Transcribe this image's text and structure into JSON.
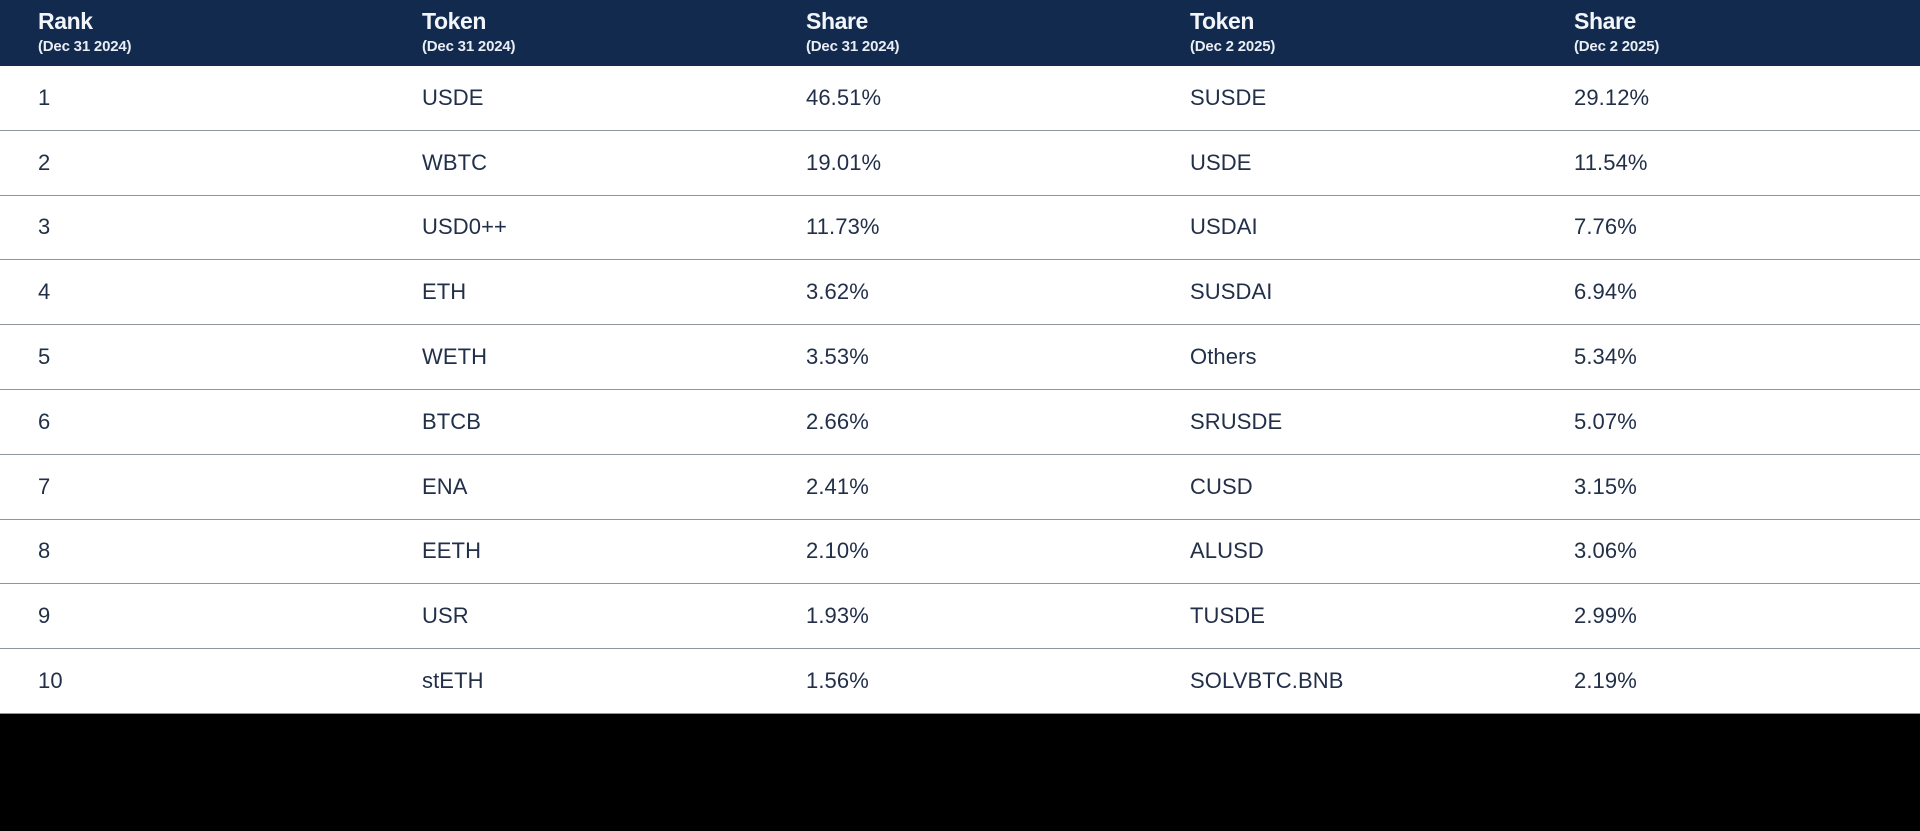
{
  "table": {
    "columns": [
      {
        "label": "Rank",
        "sublabel": "(Dec 31 2024)"
      },
      {
        "label": "Token",
        "sublabel": "(Dec 31 2024)"
      },
      {
        "label": "Share",
        "sublabel": "(Dec 31 2024)"
      },
      {
        "label": "Token",
        "sublabel": "(Dec 2 2025)"
      },
      {
        "label": "Share",
        "sublabel": "(Dec 2 2025)"
      }
    ],
    "rows": [
      {
        "rank": "1",
        "token_dec31_2024": "USDE",
        "share_dec31_2024": "46.51%",
        "token_dec2_2025": "SUSDE",
        "share_dec2_2025": "29.12%"
      },
      {
        "rank": "2",
        "token_dec31_2024": "WBTC",
        "share_dec31_2024": "19.01%",
        "token_dec2_2025": "USDE",
        "share_dec2_2025": "11.54%"
      },
      {
        "rank": "3",
        "token_dec31_2024": "USD0++",
        "share_dec31_2024": "11.73%",
        "token_dec2_2025": "USDAI",
        "share_dec2_2025": "7.76%"
      },
      {
        "rank": "4",
        "token_dec31_2024": "ETH",
        "share_dec31_2024": "3.62%",
        "token_dec2_2025": "SUSDAI",
        "share_dec2_2025": "6.94%"
      },
      {
        "rank": "5",
        "token_dec31_2024": "WETH",
        "share_dec31_2024": "3.53%",
        "token_dec2_2025": "Others",
        "share_dec2_2025": "5.34%"
      },
      {
        "rank": "6",
        "token_dec31_2024": "BTCB",
        "share_dec31_2024": "2.66%",
        "token_dec2_2025": "SRUSDE",
        "share_dec2_2025": "5.07%"
      },
      {
        "rank": "7",
        "token_dec31_2024": "ENA",
        "share_dec31_2024": "2.41%",
        "token_dec2_2025": "CUSD",
        "share_dec2_2025": "3.15%"
      },
      {
        "rank": "8",
        "token_dec31_2024": "EETH",
        "share_dec31_2024": "2.10%",
        "token_dec2_2025": "ALUSD",
        "share_dec2_2025": "3.06%"
      },
      {
        "rank": "9",
        "token_dec31_2024": "USR",
        "share_dec31_2024": "1.93%",
        "token_dec2_2025": "TUSDE",
        "share_dec2_2025": "2.99%"
      },
      {
        "rank": "10",
        "token_dec31_2024": "stETH",
        "share_dec31_2024": "1.56%",
        "token_dec2_2025": "SOLVBTC.BNB",
        "share_dec2_2025": "2.19%"
      }
    ]
  },
  "chart_data": {
    "type": "table",
    "title": "",
    "columns": [
      "Rank (Dec 31 2024)",
      "Token (Dec 31 2024)",
      "Share (Dec 31 2024)",
      "Token (Dec 2 2025)",
      "Share (Dec 2 2025)"
    ],
    "rows": [
      [
        1,
        "USDE",
        46.51,
        "SUSDE",
        29.12
      ],
      [
        2,
        "WBTC",
        19.01,
        "USDE",
        11.54
      ],
      [
        3,
        "USD0++",
        11.73,
        "USDAI",
        7.76
      ],
      [
        4,
        "ETH",
        3.62,
        "SUSDAI",
        6.94
      ],
      [
        5,
        "WETH",
        3.53,
        "Others",
        5.34
      ],
      [
        6,
        "BTCB",
        2.66,
        "SRUSDE",
        5.07
      ],
      [
        7,
        "ENA",
        2.41,
        "CUSD",
        3.15
      ],
      [
        8,
        "EETH",
        2.1,
        "ALUSD",
        3.06
      ],
      [
        9,
        "USR",
        1.93,
        "TUSDE",
        2.99
      ],
      [
        10,
        "stETH",
        1.56,
        "SOLVBTC.BNB",
        2.19
      ]
    ],
    "units": "percent share of total"
  },
  "colors": {
    "header_bg": "#122A4E",
    "header_text": "#F2F5F9",
    "row_bg": "#FFFFFF",
    "row_text": "#222F49",
    "divider": "#8E969E",
    "footer_bg": "#000000"
  }
}
